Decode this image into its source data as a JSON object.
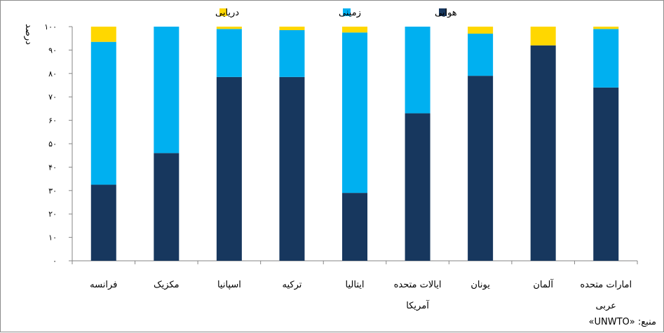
{
  "chart_data": {
    "type": "bar",
    "stacked": true,
    "title": "",
    "xlabel": "",
    "ylabel": "درصد",
    "ylim": [
      0,
      100
    ],
    "yticks": [
      "۰",
      "۱۰",
      "۲۰",
      "۳۰",
      "۴۰",
      "۵۰",
      "۶۰",
      "۷۰",
      "۸۰",
      "۹۰",
      "۱۰۰"
    ],
    "grid": false,
    "legend_position": "top",
    "categories": [
      [
        "فرانسه"
      ],
      [
        "مکزیک"
      ],
      [
        "اسپانیا"
      ],
      [
        "ترکیه"
      ],
      [
        "ایتالیا"
      ],
      [
        "ایالات متحده",
        "آمریکا"
      ],
      [
        "یونان"
      ],
      [
        "آلمان"
      ],
      [
        "امارات متحده",
        "عربی"
      ]
    ],
    "series": [
      {
        "name": "هوایی",
        "color": "#17375e",
        "values": [
          32.5,
          46,
          78.5,
          78.5,
          29,
          63,
          79,
          92,
          74
        ]
      },
      {
        "name": "زمینی",
        "color": "#00b0f0",
        "values": [
          61,
          54,
          20.5,
          20,
          68.5,
          37,
          18,
          0,
          25
        ]
      },
      {
        "name": "دریایی",
        "color": "#ffd700",
        "values": [
          6.5,
          0,
          1,
          1.5,
          2.5,
          0,
          3,
          8,
          1
        ]
      }
    ],
    "source": "منبع: «UNWTO»"
  }
}
